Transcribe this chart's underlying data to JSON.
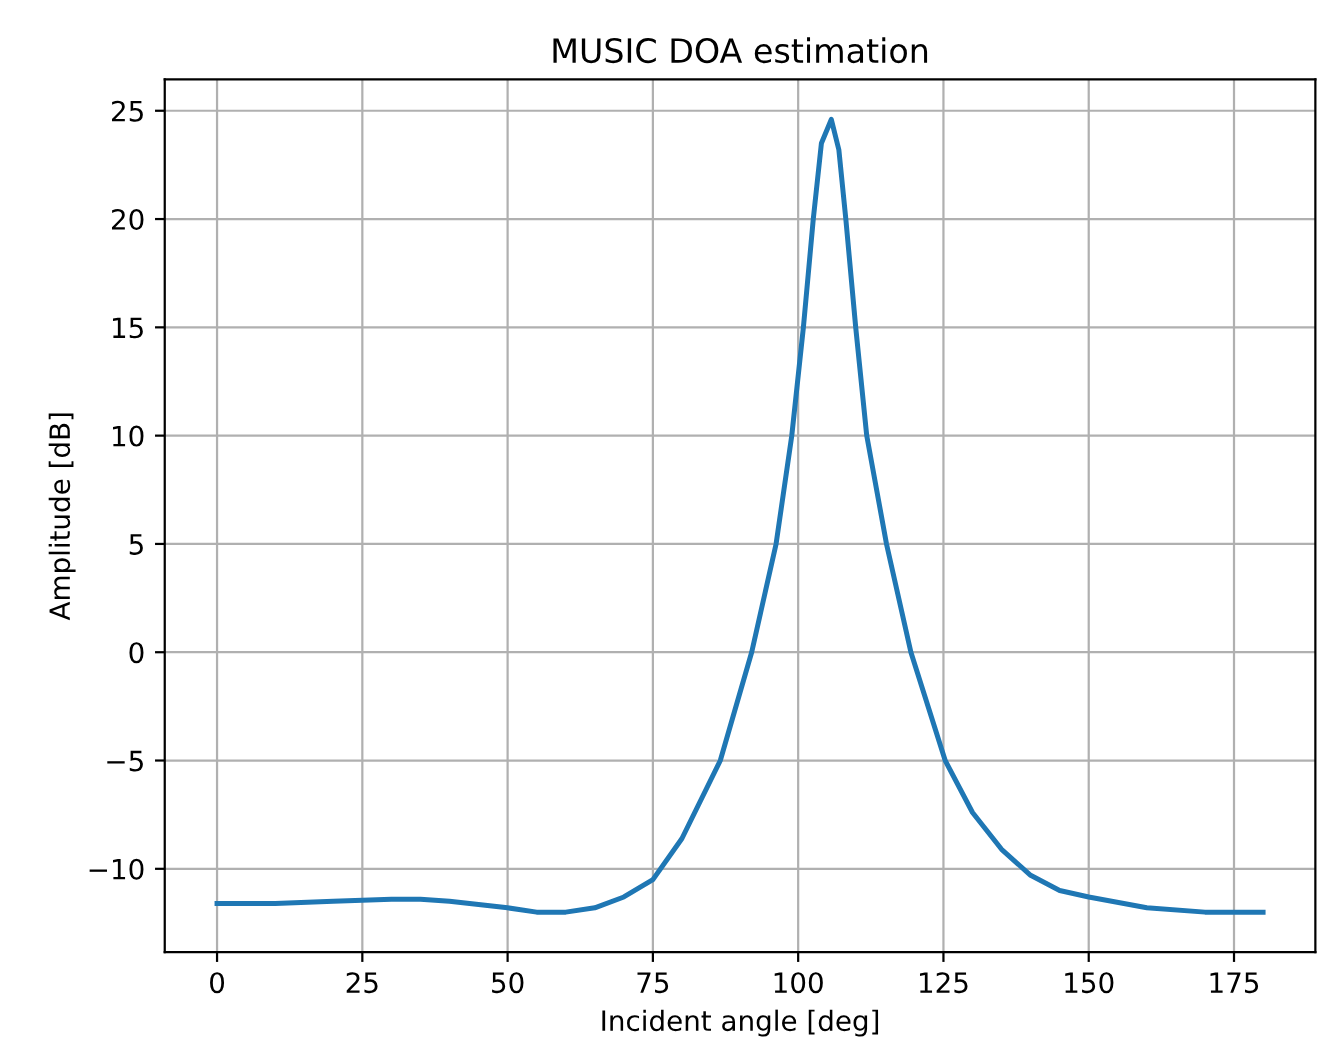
{
  "chart_data": {
    "type": "line",
    "title": "MUSIC DOA estimation",
    "xlabel": "Incident angle [deg]",
    "ylabel": "Amplitude [dB]",
    "series": [
      {
        "color": "#1f77b4",
        "x": [
          0,
          10,
          20,
          30,
          35,
          40,
          50,
          55,
          60,
          65,
          70,
          75,
          80,
          86.6,
          92,
          96.2,
          98.9,
          100.9,
          102.6,
          104,
          105.7,
          107,
          108.2,
          109.9,
          111.8,
          115.2,
          119.4,
          125.3,
          130,
          135,
          140,
          145,
          150,
          160,
          170,
          180
        ],
        "values": [
          -11.6,
          -11.6,
          -11.5,
          -11.4,
          -11.4,
          -11.5,
          -11.8,
          -12.0,
          -12.0,
          -11.8,
          -11.3,
          -10.5,
          -8.6,
          -5,
          0,
          5,
          10,
          15,
          20,
          23.5,
          24.6,
          23.2,
          20,
          15,
          10,
          5,
          0,
          -5,
          -7.4,
          -9.1,
          -10.3,
          -11.0,
          -11.3,
          -11.8,
          -12.0,
          -12.0
        ]
      }
    ],
    "xlim": [
      -9,
      189
    ],
    "ylim": [
      -13.85,
      26.45
    ],
    "xticks": [
      0,
      25,
      50,
      75,
      100,
      125,
      150,
      175
    ],
    "yticks": [
      {
        "value": -10,
        "label": "−10"
      },
      {
        "value": -5,
        "label": "−5"
      },
      0,
      5,
      10,
      15,
      20,
      25
    ],
    "grid": true
  }
}
